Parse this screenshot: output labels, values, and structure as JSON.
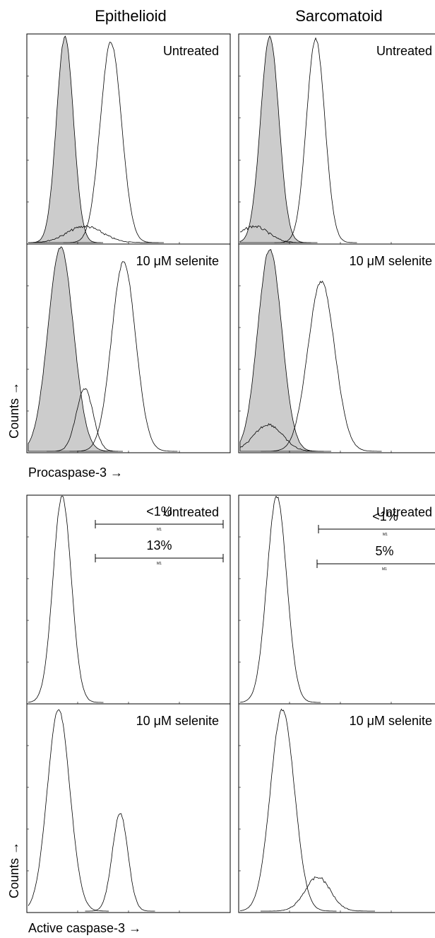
{
  "figure": {
    "columns": [
      "Epithelioid",
      "Sarcomatoid"
    ],
    "panels": [
      {
        "label": "Untreated"
      },
      {
        "label": "Untreated"
      },
      {
        "label": "10 μM selenite"
      },
      {
        "label": "10 μM selenite"
      },
      {
        "label": "Untreated",
        "gate_percent": "<1%",
        "gate_name": "M1"
      },
      {
        "label": "Untreated",
        "gate_percent": "<1%",
        "gate_name": "M1"
      },
      {
        "label": "10 μM selenite",
        "gate_percent": "13%",
        "gate_name": "M1"
      },
      {
        "label": "10 μM selenite",
        "gate_percent": "5%",
        "gate_name": "M1"
      }
    ],
    "y_label": "Counts →",
    "x_label_top": "Procaspase-3 →",
    "x_label_bottom": "Active caspase-3 →"
  }
}
